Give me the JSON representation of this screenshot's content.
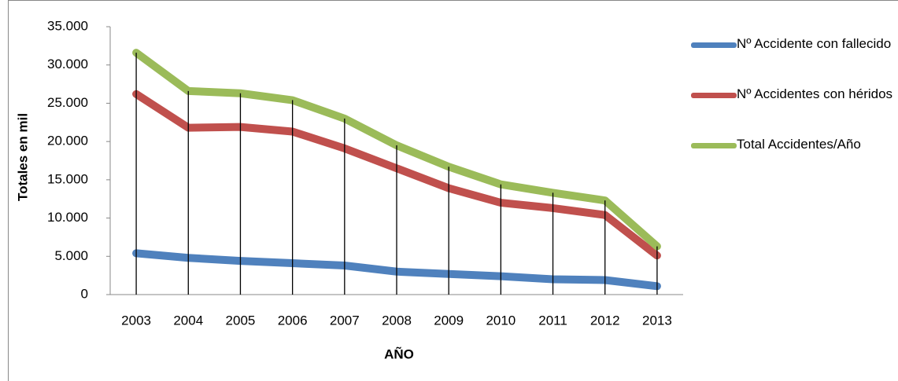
{
  "chart_data": {
    "type": "line",
    "x_label": "AÑO",
    "y_label": "Totales en mil",
    "categories": [
      "2003",
      "2004",
      "2005",
      "2006",
      "2007",
      "2008",
      "2009",
      "2010",
      "2011",
      "2012",
      "2013"
    ],
    "series": [
      {
        "name": "Nº Accidente con fallecido",
        "color": "#4f81bd",
        "values": [
          5400,
          4800,
          4400,
          4100,
          3800,
          3000,
          2700,
          2400,
          2000,
          1900,
          1100
        ]
      },
      {
        "name": "Nº Accidentes con héridos",
        "color": "#c0504d",
        "values": [
          26200,
          21800,
          21900,
          21300,
          19100,
          16500,
          13900,
          12000,
          11300,
          10400,
          5100
        ]
      },
      {
        "name": "Total Accidentes/Año",
        "color": "#9bbb59",
        "values": [
          31600,
          26600,
          26300,
          25400,
          23000,
          19500,
          16700,
          14400,
          13300,
          12300,
          6300
        ]
      }
    ],
    "ylim": [
      0,
      35000
    ],
    "yticks": [
      0,
      {
        "value": 5000,
        "label": "5.000"
      },
      {
        "value": 10000,
        "label": "10.000"
      },
      {
        "value": 15000,
        "label": "15.000"
      },
      {
        "value": 20000,
        "label": "20.000"
      },
      {
        "value": 25000,
        "label": "25.000"
      },
      {
        "value": 30000,
        "label": "30.000"
      },
      {
        "value": 35000,
        "label": "35.000"
      }
    ],
    "drop_lines": true,
    "legend": "right"
  }
}
